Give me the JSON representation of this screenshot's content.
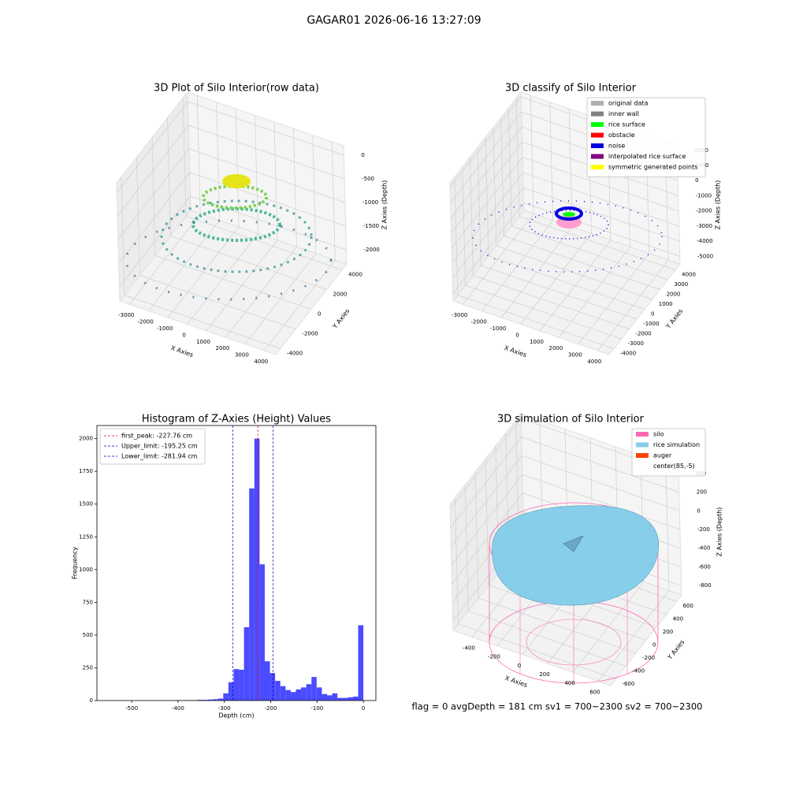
{
  "title": "GAGAR01 2026-06-16 13:27:09",
  "chart_data": [
    {
      "type": "scatter3d",
      "title": "3D Plot of Silo Interior(row data)",
      "x_label": "X Axies",
      "y_label": "Y Axies",
      "z_label": "Z Axies (Depth)",
      "xlim": [
        -3500,
        4600
      ],
      "ylim": [
        -4600,
        4600
      ],
      "zlim": [
        -2300,
        200
      ],
      "xticks": [
        -3000,
        -2000,
        -1000,
        0,
        1000,
        2000,
        3000,
        4000
      ],
      "yticks": [
        -4000,
        -2000,
        0,
        2000,
        4000
      ],
      "zticks": [
        -2000,
        -1500,
        -1000,
        -500,
        0
      ]
    },
    {
      "type": "scatter3d",
      "title": "3D classify of Silo Interior",
      "x_label": "X Axies",
      "y_label": "Y Axies",
      "z_label": "Z Axies (Depth)",
      "xlim": [
        -3500,
        4600
      ],
      "ylim": [
        -4600,
        4600
      ],
      "zlim": [
        -5500,
        2300
      ],
      "xticks": [
        -3000,
        -2000,
        -1000,
        0,
        1000,
        2000,
        3000,
        4000
      ],
      "yticks": [
        -4000,
        -3000,
        -2000,
        -1000,
        0,
        1000,
        2000,
        3000,
        4000
      ],
      "zticks": [
        -5000,
        -4000,
        -3000,
        -2000,
        -1000,
        0,
        1000,
        2000
      ],
      "series": [
        {
          "name": "original data",
          "color": "#b0b0b0"
        },
        {
          "name": "inner wall",
          "color": "#808080"
        },
        {
          "name": "rice surface",
          "color": "#00ff00"
        },
        {
          "name": "obstacle",
          "color": "#ff0000"
        },
        {
          "name": "noise",
          "color": "#0000e0"
        },
        {
          "name": "interpolated rice surface",
          "color": "#800080"
        },
        {
          "name": "symmetric generated points",
          "color": "#ffff00"
        }
      ]
    },
    {
      "type": "histogram",
      "title": "Histogram of Z-Axies (Height) Values",
      "x_label": "Depth (cm)",
      "y_label": "Frequency",
      "color": "#4b4bff",
      "bins": [
        -560,
        -548.8,
        -537.6,
        -526.4,
        -515.2,
        -504,
        -492.8,
        -481.6,
        -470.4,
        -459.2,
        -448,
        -436.8,
        -425.6,
        -414.4,
        -403.2,
        -392,
        -380.8,
        -369.6,
        -358.4,
        -347.2,
        -336,
        -324.8,
        -313.6,
        -302.4,
        -291.2,
        -280,
        -268.8,
        -257.6,
        -246.4,
        -235.2,
        -224,
        -212.8,
        -201.6,
        -190.4,
        -179.2,
        -168,
        -156.8,
        -145.6,
        -134.4,
        -123.2,
        -112,
        -100.8,
        -89.6,
        -78.4,
        -67.2,
        -56,
        -44.8,
        -33.6,
        -22.4,
        -11.2,
        0
      ],
      "counts": [
        0,
        0,
        0,
        0,
        0,
        0,
        0,
        0,
        0,
        0,
        0,
        0,
        0,
        2,
        3,
        2,
        3,
        3,
        5,
        5,
        8,
        10,
        15,
        55,
        140,
        240,
        235,
        560,
        1620,
        2000,
        1040,
        300,
        210,
        150,
        110,
        80,
        65,
        85,
        100,
        125,
        180,
        100,
        50,
        40,
        55,
        20,
        20,
        25,
        30,
        575
      ],
      "xlim": [
        -575,
        27
      ],
      "ylim": [
        0,
        2100
      ],
      "xticks": [
        -500,
        -400,
        -300,
        -200,
        -100,
        0
      ],
      "yticks": [
        0,
        250,
        500,
        750,
        1000,
        1250,
        1500,
        1750,
        2000
      ],
      "vlines": [
        {
          "value": -227.76,
          "label": "first_peak: -227.76 cm",
          "color": "#ff0000"
        },
        {
          "value": -195.25,
          "label": "Upper_limit: -195.25 cm",
          "color": "#0000cc"
        },
        {
          "value": -281.94,
          "label": "Lower_limit: -281.94 cm",
          "color": "#0000cc"
        }
      ]
    },
    {
      "type": "surface3d",
      "title": "3D simulation of Silo Interior",
      "x_label": "X Axies",
      "y_label": "Y Axies",
      "z_label": "Z Axies (Depth)",
      "xlim": [
        -550,
        700
      ],
      "ylim": [
        -700,
        700
      ],
      "zlim": [
        -900,
        450
      ],
      "xticks": [
        -400,
        -200,
        0,
        200,
        400,
        600
      ],
      "yticks": [
        -600,
        -400,
        -200,
        0,
        200,
        400,
        600
      ],
      "zticks": [
        -800,
        -600,
        -400,
        -200,
        0,
        200,
        400
      ],
      "series": [
        {
          "name": "silo",
          "color": "#ff69b4"
        },
        {
          "name": "rice simulation",
          "color": "#87ceeb"
        },
        {
          "name": "auger",
          "color": "#ff4500"
        },
        {
          "name": "center(85,-5)",
          "color": "#ffffff"
        }
      ],
      "annotation": "flag = 0    avgDepth = 181 cm  sv1 = 700~2300  sv2 = 700~2300"
    }
  ]
}
